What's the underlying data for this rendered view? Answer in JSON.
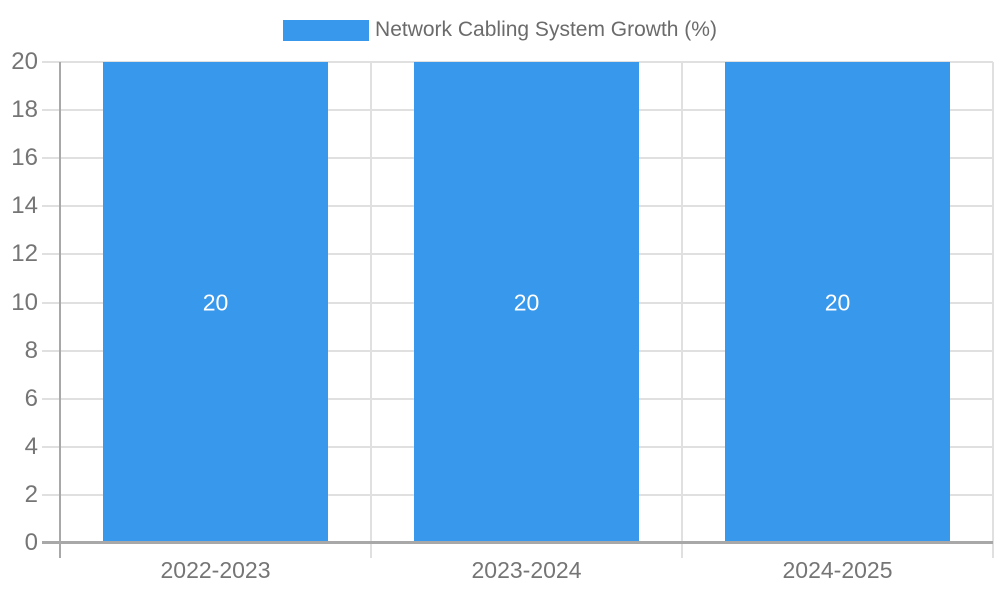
{
  "legend": {
    "label": "Network Cabling System Growth (%)"
  },
  "colors": {
    "bar": "#3898ec",
    "gridline": "#e0e0e0",
    "axis": "#a8a8a8",
    "tick_text": "#757575",
    "legend_text": "#6b6b6b",
    "bar_value_text": "#ffffff"
  },
  "chart_data": {
    "type": "bar",
    "title": "Network Cabling System Growth (%)",
    "categories": [
      "2022-2023",
      "2023-2024",
      "2024-2025"
    ],
    "series": [
      {
        "name": "Network Cabling System Growth (%)",
        "values": [
          20,
          20,
          20
        ],
        "color": "#3898ec"
      }
    ],
    "bar_value_labels": [
      "20",
      "20",
      "20"
    ],
    "xlabel": "",
    "ylabel": "",
    "ylim": [
      0,
      20
    ],
    "yticks": [
      0,
      2,
      4,
      6,
      8,
      10,
      12,
      14,
      16,
      18,
      20
    ],
    "grid": true,
    "legend_position": "top",
    "value_labels_inside_bars": true
  }
}
